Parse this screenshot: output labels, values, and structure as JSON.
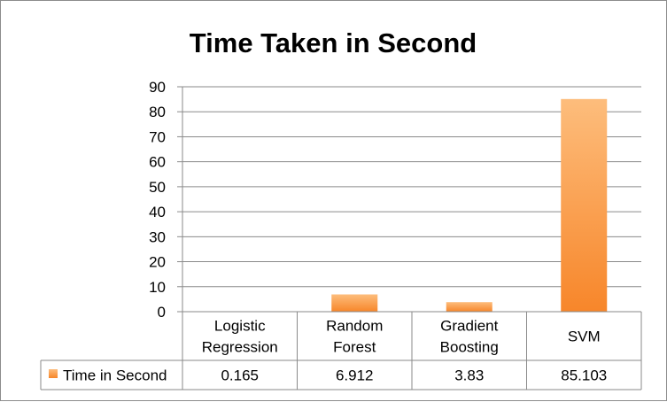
{
  "chart_data": {
    "type": "bar",
    "title": "Time Taken in Second",
    "xlabel": "",
    "ylabel": "",
    "categories": [
      [
        "Logistic",
        "Regression"
      ],
      [
        "Random",
        "Forest"
      ],
      [
        "Gradient",
        "Boosting"
      ],
      [
        "SVM"
      ]
    ],
    "series": [
      {
        "name": "Time in Second",
        "values": [
          0.165,
          6.912,
          3.83,
          85.103
        ],
        "table_labels": [
          "0.165",
          "6.912",
          "3.83",
          "85.103"
        ],
        "color": "#f7923a"
      }
    ],
    "ylim": [
      0,
      90
    ],
    "yticks": [
      0,
      10,
      20,
      30,
      40,
      50,
      60,
      70,
      80,
      90
    ],
    "grid": true,
    "legend": "data-table-left"
  }
}
